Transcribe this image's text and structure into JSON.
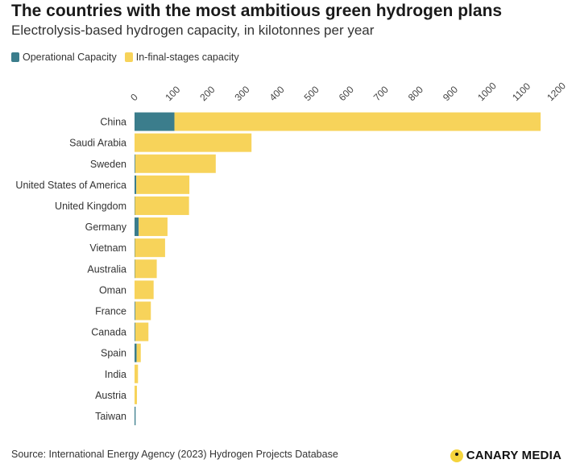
{
  "header": {
    "title": "The countries with the most ambitious green hydrogen plans",
    "subtitle": "Electrolysis-based hydrogen capacity, in kilotonnes per year"
  },
  "colors": {
    "operational": "#3b7d8c",
    "final_stage": "#f7d35a",
    "grid": "#e6e6e6"
  },
  "chart_data": {
    "type": "bar",
    "orientation": "horizontal",
    "stacked": true,
    "title": "The countries with the most ambitious green hydrogen plans",
    "subtitle": "Electrolysis-based hydrogen capacity, in kilotonnes per year",
    "xlabel": "",
    "ylabel": "",
    "xlim": [
      0,
      1200
    ],
    "xticks": [
      0,
      100,
      200,
      300,
      400,
      500,
      600,
      700,
      800,
      900,
      1000,
      1100,
      1200
    ],
    "legend_position": "top-left",
    "categories": [
      "China",
      "Saudi Arabia",
      "Sweden",
      "United States of America",
      "United Kingdom",
      "Germany",
      "Vietnam",
      "Australia",
      "Oman",
      "France",
      "Canada",
      "Spain",
      "India",
      "Austria",
      "Taiwan"
    ],
    "series": [
      {
        "name": "Operational Capacity",
        "values": [
          115,
          0,
          2,
          5,
          1,
          12,
          1,
          1,
          0,
          2,
          2,
          6,
          0,
          0,
          3
        ]
      },
      {
        "name": "In-final-stages capacity",
        "values": [
          1055,
          337,
          232,
          153,
          156,
          83,
          87,
          63,
          55,
          45,
          38,
          12,
          10,
          7,
          0
        ]
      }
    ]
  },
  "footer": {
    "source": "Source: International Energy Agency (2023) Hydrogen Projects Database",
    "brand": "CANARY MEDIA"
  }
}
